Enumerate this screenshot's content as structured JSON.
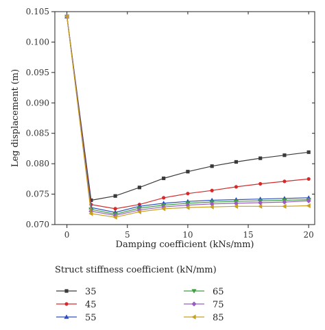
{
  "chart_data": {
    "type": "line",
    "xlabel": "Damping coefficient (kNs/mm)",
    "ylabel": "Leg displacement (m)",
    "xlim": [
      -1,
      20.5
    ],
    "ylim": [
      0.07,
      0.105
    ],
    "xticks": [
      0,
      5,
      10,
      15,
      20
    ],
    "yticks": [
      0.07,
      0.075,
      0.08,
      0.085,
      0.09,
      0.095,
      0.1,
      0.105
    ],
    "ytick_labels": [
      "0.070",
      "0.075",
      "0.080",
      "0.085",
      "0.090",
      "0.095",
      "0.100",
      "0.105"
    ],
    "legend_title": "Struct stiffness coefficient (kN/mm)",
    "legend_position": "bottom",
    "x": [
      0,
      2,
      4,
      6,
      8,
      10,
      12,
      14,
      16,
      18,
      20
    ],
    "series": [
      {
        "name": "35",
        "color": "#3a3a3a",
        "marker": "square",
        "values": [
          0.1042,
          0.074,
          0.0747,
          0.0761,
          0.0776,
          0.0787,
          0.0796,
          0.0803,
          0.0809,
          0.0814,
          0.0819
        ]
      },
      {
        "name": "45",
        "color": "#d62a2a",
        "marker": "circle",
        "values": [
          0.1042,
          0.0733,
          0.0726,
          0.0733,
          0.0744,
          0.0751,
          0.0756,
          0.0762,
          0.0767,
          0.0771,
          0.0775
        ]
      },
      {
        "name": "55",
        "color": "#2a4ec0",
        "marker": "triangle-up",
        "values": [
          0.1042,
          0.0728,
          0.072,
          0.073,
          0.0735,
          0.0738,
          0.074,
          0.0741,
          0.0742,
          0.0743,
          0.0744
        ]
      },
      {
        "name": "65",
        "color": "#3f9e3f",
        "marker": "triangle-down",
        "values": [
          0.1042,
          0.0725,
          0.0717,
          0.0727,
          0.0732,
          0.0735,
          0.0737,
          0.0738,
          0.0739,
          0.074,
          0.0741
        ]
      },
      {
        "name": "75",
        "color": "#9a5cc0",
        "marker": "diamond",
        "values": [
          0.1042,
          0.0722,
          0.0715,
          0.0724,
          0.0729,
          0.0732,
          0.0734,
          0.0735,
          0.0736,
          0.0737,
          0.0739
        ]
      },
      {
        "name": "85",
        "color": "#c8a020",
        "marker": "triangle-left",
        "values": [
          0.1042,
          0.0718,
          0.0712,
          0.0721,
          0.0726,
          0.0728,
          0.0729,
          0.073,
          0.073,
          0.073,
          0.0731
        ]
      }
    ]
  }
}
